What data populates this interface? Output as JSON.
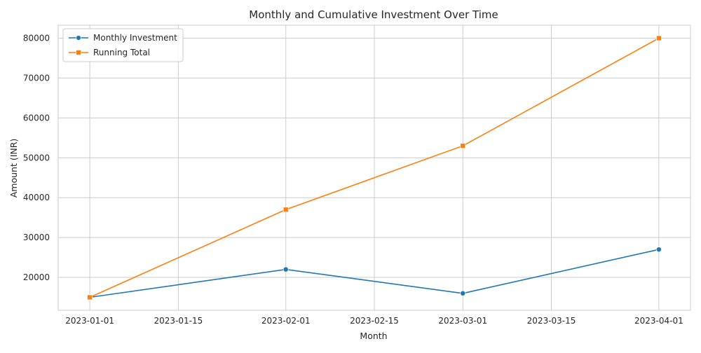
{
  "colors": {
    "monthly": "#1f77b4",
    "running": "#ff7f0e",
    "grid": "#cccccc",
    "frame": "#cccccc"
  },
  "chart_data": {
    "type": "line",
    "title": "Monthly and Cumulative Investment Over Time",
    "xlabel": "Month",
    "ylabel": "Amount (INR)",
    "x": [
      "2023-01-01",
      "2023-02-01",
      "2023-03-01",
      "2023-04-01"
    ],
    "x_ticks": [
      "2023-01-01",
      "2023-01-15",
      "2023-02-01",
      "2023-02-15",
      "2023-03-01",
      "2023-03-15",
      "2023-04-01"
    ],
    "y_ticks": [
      20000,
      30000,
      40000,
      50000,
      60000,
      70000,
      80000
    ],
    "xlim": [
      "2022-12-27",
      "2023-04-06"
    ],
    "ylim": [
      11750,
      83250
    ],
    "grid": true,
    "legend_position": "top-left",
    "series": [
      {
        "name": "Monthly Investment",
        "color": "#1f77b4",
        "marker": "circle",
        "values": [
          15000,
          22000,
          16000,
          27000
        ]
      },
      {
        "name": "Running Total",
        "color": "#ff7f0e",
        "marker": "square",
        "values": [
          15000,
          37000,
          53000,
          80000
        ]
      }
    ]
  }
}
